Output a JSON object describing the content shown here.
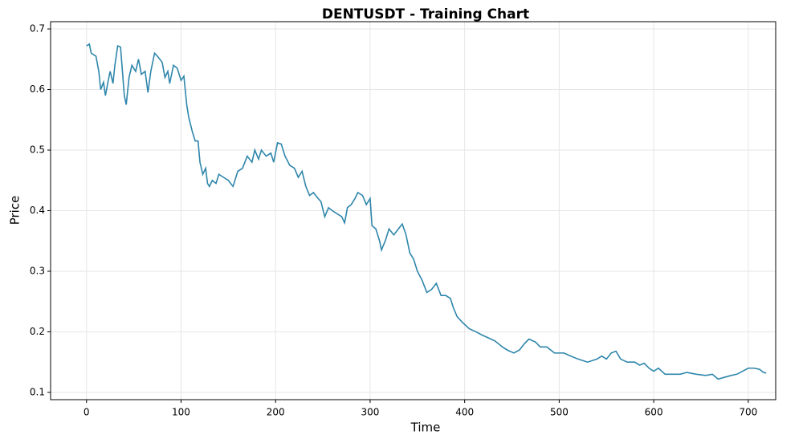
{
  "chart_data": {
    "type": "line",
    "title": "DENTUSDT - Training Chart",
    "x_label": "Time",
    "y_label": "Price",
    "x": [
      0,
      3,
      5,
      10,
      13,
      15,
      18,
      20,
      23,
      25,
      28,
      30,
      33,
      36,
      38,
      40,
      42,
      45,
      48,
      52,
      55,
      58,
      62,
      65,
      68,
      72,
      75,
      80,
      83,
      86,
      88,
      92,
      96,
      100,
      103,
      106,
      108,
      112,
      115,
      118,
      120,
      123,
      126,
      128,
      130,
      133,
      137,
      140,
      145,
      150,
      155,
      160,
      165,
      170,
      175,
      178,
      182,
      185,
      190,
      195,
      198,
      202,
      206,
      210,
      215,
      220,
      224,
      228,
      232,
      236,
      240,
      245,
      248,
      252,
      256,
      260,
      265,
      270,
      273,
      276,
      280,
      284,
      287,
      292,
      296,
      300,
      302,
      306,
      310,
      312,
      316,
      320,
      325,
      330,
      334,
      338,
      342,
      346,
      350,
      355,
      360,
      365,
      370,
      375,
      380,
      385,
      388,
      392,
      398,
      405,
      412,
      418,
      425,
      432,
      440,
      445,
      452,
      458,
      463,
      468,
      475,
      480,
      487,
      495,
      505,
      512,
      520,
      530,
      540,
      545,
      550,
      555,
      560,
      565,
      572,
      580,
      585,
      590,
      595,
      600,
      605,
      612,
      620,
      628,
      635,
      645,
      655,
      662,
      668,
      675,
      682,
      688,
      694,
      700,
      706,
      712,
      716,
      719
    ],
    "series": [
      {
        "name": "Price",
        "color": "#2e86ab",
        "values": [
          0.672,
          0.675,
          0.66,
          0.655,
          0.63,
          0.6,
          0.612,
          0.59,
          0.615,
          0.63,
          0.61,
          0.64,
          0.672,
          0.67,
          0.63,
          0.59,
          0.575,
          0.62,
          0.64,
          0.63,
          0.65,
          0.625,
          0.63,
          0.595,
          0.63,
          0.66,
          0.655,
          0.645,
          0.62,
          0.63,
          0.61,
          0.64,
          0.635,
          0.615,
          0.622,
          0.575,
          0.555,
          0.53,
          0.515,
          0.515,
          0.48,
          0.46,
          0.47,
          0.445,
          0.44,
          0.45,
          0.445,
          0.46,
          0.455,
          0.45,
          0.44,
          0.465,
          0.47,
          0.49,
          0.48,
          0.5,
          0.485,
          0.5,
          0.49,
          0.495,
          0.48,
          0.512,
          0.51,
          0.49,
          0.475,
          0.47,
          0.455,
          0.465,
          0.44,
          0.425,
          0.43,
          0.42,
          0.415,
          0.39,
          0.405,
          0.4,
          0.395,
          0.39,
          0.38,
          0.405,
          0.41,
          0.42,
          0.43,
          0.425,
          0.41,
          0.42,
          0.375,
          0.37,
          0.35,
          0.335,
          0.35,
          0.37,
          0.36,
          0.37,
          0.378,
          0.36,
          0.33,
          0.32,
          0.3,
          0.285,
          0.265,
          0.27,
          0.28,
          0.26,
          0.26,
          0.255,
          0.24,
          0.225,
          0.215,
          0.205,
          0.2,
          0.195,
          0.19,
          0.185,
          0.175,
          0.17,
          0.165,
          0.17,
          0.18,
          0.188,
          0.183,
          0.175,
          0.175,
          0.165,
          0.165,
          0.16,
          0.155,
          0.15,
          0.155,
          0.16,
          0.155,
          0.165,
          0.168,
          0.155,
          0.15,
          0.15,
          0.145,
          0.148,
          0.14,
          0.135,
          0.14,
          0.13,
          0.13,
          0.13,
          0.133,
          0.13,
          0.128,
          0.13,
          0.122,
          0.125,
          0.128,
          0.13,
          0.135,
          0.14,
          0.14,
          0.138,
          0.133,
          0.132
        ]
      }
    ],
    "xlim": [
      -38,
      729
    ],
    "ylim": [
      0.088,
      0.712
    ],
    "xticks": [
      0,
      100,
      200,
      300,
      400,
      500,
      600,
      700
    ],
    "yticks": [
      0.1,
      0.2,
      0.3,
      0.4,
      0.5,
      0.6,
      0.7
    ],
    "grid": true
  }
}
